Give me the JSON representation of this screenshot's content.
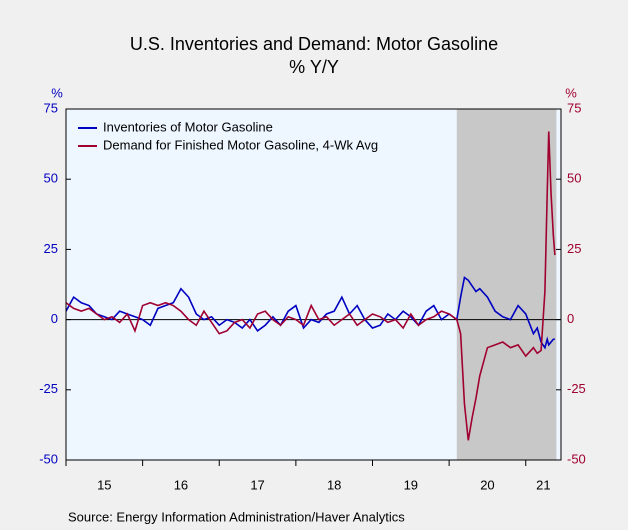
{
  "chart_data": {
    "type": "line",
    "title": "U.S. Inventories and Demand: Motor Gasoline",
    "subtitle": "% Y/Y",
    "y_label": "%",
    "y2_label": "%",
    "source": "Source:  Energy Information Administration/Haver Analytics",
    "xlim": [
      2015,
      2021.46
    ],
    "xticks": [
      {
        "value": 2015,
        "label": "15"
      },
      {
        "value": 2016,
        "label": "16"
      },
      {
        "value": 2017,
        "label": "17"
      },
      {
        "value": 2018,
        "label": "18"
      },
      {
        "value": 2019,
        "label": "19"
      },
      {
        "value": 2020,
        "label": "20"
      },
      {
        "value": 2021,
        "label": "21"
      }
    ],
    "ylim": [
      -50,
      75
    ],
    "yticks": [
      75,
      50,
      25,
      0,
      -25,
      -50
    ],
    "y2lim": [
      -50,
      75
    ],
    "y2ticks": [
      75,
      50,
      25,
      0,
      -25,
      -50
    ],
    "shaded_region": [
      2020.1,
      2021.4
    ],
    "x": [
      2015.0,
      2015.1,
      2015.2,
      2015.3,
      2015.4,
      2015.5,
      2015.6,
      2015.7,
      2015.8,
      2015.9,
      2016.0,
      2016.1,
      2016.2,
      2016.3,
      2016.4,
      2016.5,
      2016.6,
      2016.7,
      2016.8,
      2016.9,
      2017.0,
      2017.1,
      2017.2,
      2017.3,
      2017.4,
      2017.5,
      2017.6,
      2017.7,
      2017.8,
      2017.9,
      2018.0,
      2018.1,
      2018.2,
      2018.3,
      2018.4,
      2018.5,
      2018.6,
      2018.7,
      2018.8,
      2018.9,
      2019.0,
      2019.1,
      2019.2,
      2019.3,
      2019.4,
      2019.5,
      2019.6,
      2019.7,
      2019.8,
      2019.9,
      2020.0,
      2020.1,
      2020.15,
      2020.2,
      2020.25,
      2020.3,
      2020.35,
      2020.4,
      2020.5,
      2020.6,
      2020.7,
      2020.8,
      2020.9,
      2021.0,
      2021.1,
      2021.15,
      2021.2,
      2021.25,
      2021.28,
      2021.3,
      2021.33,
      2021.36,
      2021.38
    ],
    "series": [
      {
        "name": "Inventories of Motor Gasoline",
        "color": "#0000c0",
        "axis": "y",
        "values": [
          3,
          8,
          6,
          5,
          2,
          1,
          0,
          3,
          2,
          1,
          0,
          -2,
          4,
          5,
          6,
          11,
          8,
          2,
          0,
          1,
          -2,
          0,
          -1,
          -3,
          0,
          -4,
          -2,
          1,
          -2,
          3,
          5,
          -3,
          0,
          -1,
          2,
          3,
          8,
          2,
          5,
          0,
          -3,
          -2,
          2,
          0,
          3,
          1,
          -2,
          3,
          5,
          0,
          2,
          0,
          8,
          15,
          14,
          12,
          10,
          11,
          8,
          3,
          1,
          0,
          5,
          2,
          -5,
          -3,
          -8,
          -10,
          -7,
          -9,
          -8,
          -7,
          -7
        ]
      },
      {
        "name": "Demand for Finished Motor Gasoline, 4-Wk Avg",
        "color": "#a00030",
        "axis": "y2",
        "values": [
          6,
          4,
          3,
          4,
          2,
          0,
          1,
          -1,
          2,
          -4,
          5,
          6,
          5,
          6,
          5,
          3,
          0,
          -2,
          3,
          -1,
          -5,
          -4,
          -1,
          0,
          -3,
          2,
          3,
          0,
          -2,
          1,
          0,
          -2,
          5,
          0,
          1,
          -2,
          0,
          2,
          -2,
          0,
          2,
          1,
          -1,
          0,
          -3,
          2,
          -2,
          0,
          1,
          3,
          2,
          0,
          -5,
          -30,
          -43,
          -35,
          -28,
          -20,
          -10,
          -9,
          -8,
          -10,
          -9,
          -13,
          -10,
          -12,
          -11,
          10,
          45,
          67,
          45,
          30,
          23
        ]
      }
    ]
  }
}
